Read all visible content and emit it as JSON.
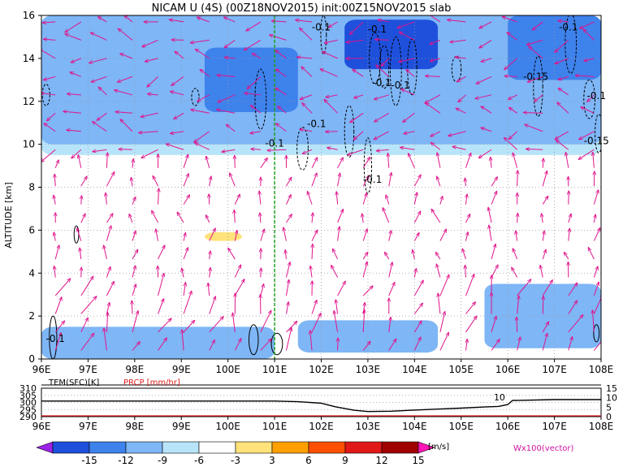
{
  "title": "NICAM U (4S) (00Z18NOV2015) init:00Z15NOV2015 slab",
  "chart_data": [
    {
      "type": "heatmap",
      "title": "NICAM U (4S) (00Z18NOV2015) init:00Z15NOV2015 slab",
      "ylabel": "ALTITUDE [km]",
      "xlabel": "",
      "xlim": [
        96,
        108
      ],
      "ylim": [
        0,
        16
      ],
      "x_ticks": [
        "96E",
        "97E",
        "98E",
        "99E",
        "100E",
        "101E",
        "102E",
        "103E",
        "104E",
        "105E",
        "106E",
        "107E",
        "108E"
      ],
      "y_ticks": [
        "0",
        "2",
        "4",
        "6",
        "8",
        "10",
        "12",
        "14",
        "16"
      ],
      "grid": true,
      "marker_line_lon": 101.0,
      "contour_labels": [
        "-0.1",
        "-0.1",
        "-0.15",
        "-0.1",
        "-0.1",
        "-0.1",
        "-0.1",
        "-0.1",
        "-0.15",
        "-0.1",
        "-0.1",
        "-0.1"
      ],
      "contour_label_positions": [
        [
          103.2,
          15.2
        ],
        [
          107.3,
          15.3
        ],
        [
          106.6,
          13.0
        ],
        [
          103.3,
          12.7
        ],
        [
          103.7,
          12.6
        ],
        [
          107.9,
          12.1
        ],
        [
          101.9,
          10.8
        ],
        [
          101.0,
          9.9
        ],
        [
          107.9,
          10.0
        ],
        [
          103.1,
          8.2
        ],
        [
          102.0,
          15.3
        ],
        [
          96.3,
          0.8
        ]
      ],
      "u_shading_regions_ms": [
        {
          "lon": [
            96.0,
            101.0
          ],
          "alt": [
            0.0,
            1.5
          ],
          "u": -6
        },
        {
          "lon": [
            101.5,
            104.5
          ],
          "alt": [
            0.3,
            1.8
          ],
          "u": -6
        },
        {
          "lon": [
            105.5,
            108.0
          ],
          "alt": [
            0.5,
            3.5
          ],
          "u": -6
        },
        {
          "lon": [
            102.5,
            104.5
          ],
          "alt": [
            13.5,
            15.8
          ],
          "u": -12
        },
        {
          "lon": [
            99.5,
            101.5
          ],
          "alt": [
            11.5,
            14.5
          ],
          "u": -9
        },
        {
          "lon": [
            106.0,
            108.0
          ],
          "alt": [
            13.0,
            16.0
          ],
          "u": -9
        },
        {
          "lon": [
            96.0,
            108.0
          ],
          "alt": [
            10.0,
            16.0
          ],
          "u": -6
        },
        {
          "lon": [
            96.0,
            108.0
          ],
          "alt": [
            9.5,
            16.0
          ],
          "u": -3
        },
        {
          "lon": [
            96.0,
            100.8
          ],
          "alt": [
            4.5,
            7.8
          ],
          "u": 3
        },
        {
          "lon": [
            102.0,
            106.3
          ],
          "alt": [
            4.8,
            6.8
          ],
          "u": 3
        },
        {
          "lon": [
            99.5,
            100.3
          ],
          "alt": [
            5.5,
            5.9
          ],
          "u": 6
        }
      ],
      "colorbar": {
        "levels": [
          "-15",
          "-12",
          "-9",
          "-6",
          "-3",
          "3",
          "6",
          "9",
          "12",
          "15"
        ],
        "colors": [
          "#9b22e6",
          "#1e50dc",
          "#3e82ec",
          "#7eb6f6",
          "#b8e4fa",
          "#ffffff",
          "#ffe27a",
          "#ffa000",
          "#ff5000",
          "#e01818",
          "#a00000",
          "#ff14b4"
        ],
        "unit": "[m/s]",
        "vector_label": "Wx100(vector)"
      }
    },
    {
      "type": "line",
      "title": "",
      "xlim": [
        96,
        108
      ],
      "x_ticks": [
        "96E",
        "97E",
        "98E",
        "99E",
        "100E",
        "101E",
        "102E",
        "103E",
        "104E",
        "105E",
        "106E",
        "107E",
        "108E"
      ],
      "left_axis": {
        "label": "TEM(SFC)[K]",
        "ticks": [
          "310",
          "305",
          "300",
          "295",
          "290"
        ],
        "range": [
          290,
          310
        ]
      },
      "right_axis": {
        "ticks": [
          "15",
          "10",
          "5",
          "0"
        ],
        "range": [
          0,
          15
        ]
      },
      "series": [
        {
          "name": "TEM(SFC)[K]",
          "axis": "left",
          "color": "#000000",
          "x": [
            96,
            97,
            98,
            99,
            100,
            101,
            101.5,
            102,
            102.3,
            102.7,
            103,
            103.5,
            104,
            104.5,
            105,
            105.5,
            105.8,
            106.0,
            106.1,
            107,
            108
          ],
          "y": [
            301.0,
            301.0,
            301.0,
            301.0,
            301.0,
            301.0,
            300.5,
            299.5,
            297.0,
            294.5,
            293.6,
            293.8,
            294.6,
            295.3,
            296.0,
            296.8,
            297.2,
            298.5,
            301.4,
            302.0,
            302.0
          ]
        },
        {
          "name": "PRCP [mm/hr]",
          "axis": "right",
          "color": "#e02020",
          "x": [
            96,
            108
          ],
          "y": [
            0,
            0
          ]
        }
      ],
      "annotation": "10"
    }
  ]
}
